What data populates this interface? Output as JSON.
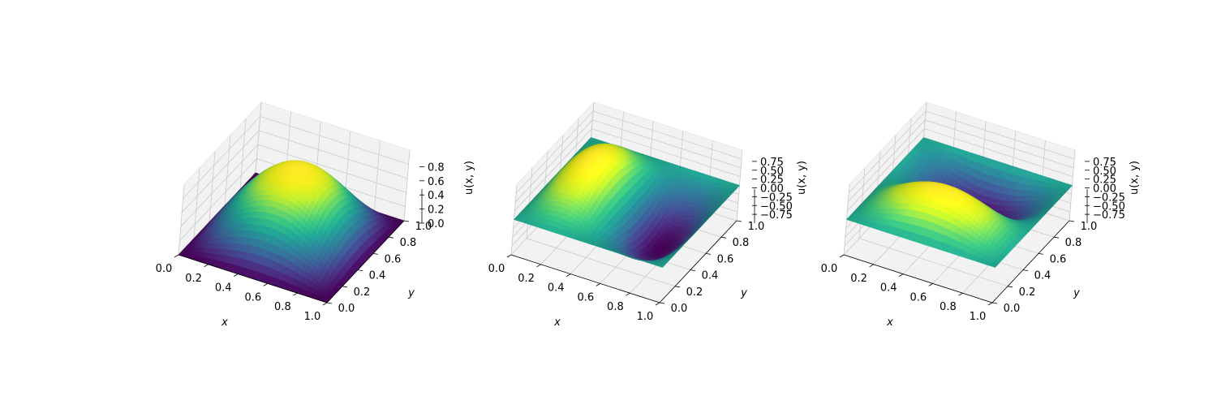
{
  "chart_data": [
    {
      "type": "surface3d",
      "colormap": "viridis",
      "function": "sin(pi*x)*sin(pi*y)",
      "xlabel": "x",
      "ylabel": "y",
      "zlabel": "u(x, y)",
      "xlim": [
        0,
        1
      ],
      "ylim": [
        0,
        1
      ],
      "zlim": [
        0,
        1
      ],
      "xticks": [
        "0.0",
        "0.2",
        "0.4",
        "0.6",
        "0.8",
        "1.0"
      ],
      "yticks": [
        "0.0",
        "0.2",
        "0.4",
        "0.6",
        "0.8",
        "1.0"
      ],
      "zticks": [
        "0.0",
        "0.2",
        "0.4",
        "0.6",
        "0.8"
      ],
      "zmin": 0,
      "zmax": 1
    },
    {
      "type": "surface3d",
      "colormap": "viridis",
      "function": "sin(2*pi*x)*sin(pi*y)",
      "xlabel": "x",
      "ylabel": "y",
      "zlabel": "u(x, y)",
      "xlim": [
        0,
        1
      ],
      "ylim": [
        0,
        1
      ],
      "zlim": [
        -1,
        1
      ],
      "xticks": [
        "0.0",
        "0.2",
        "0.4",
        "0.6",
        "0.8",
        "1.0"
      ],
      "yticks": [
        "0.0",
        "0.2",
        "0.4",
        "0.6",
        "0.8",
        "1.0"
      ],
      "zticks": [
        "−0.75",
        "−0.50",
        "−0.25",
        "0.00",
        "0.25",
        "0.50",
        "0.75"
      ],
      "zmin": -1,
      "zmax": 1
    },
    {
      "type": "surface3d",
      "colormap": "viridis",
      "function": "sin(pi*x)*sin(2*pi*y)",
      "xlabel": "x",
      "ylabel": "y",
      "zlabel": "u(x, y)",
      "xlim": [
        0,
        1
      ],
      "ylim": [
        0,
        1
      ],
      "zlim": [
        -1,
        1
      ],
      "xticks": [
        "0.0",
        "0.2",
        "0.4",
        "0.6",
        "0.8",
        "1.0"
      ],
      "yticks": [
        "0.0",
        "0.2",
        "0.4",
        "0.6",
        "0.8",
        "1.0"
      ],
      "zticks": [
        "−0.75",
        "−0.50",
        "−0.25",
        "0.00",
        "0.25",
        "0.50",
        "0.75"
      ],
      "zmin": -1,
      "zmax": 1
    }
  ],
  "colors": {
    "pane": "#f2f2f2",
    "grid": "#cbcbcb",
    "axis": "#000000"
  }
}
